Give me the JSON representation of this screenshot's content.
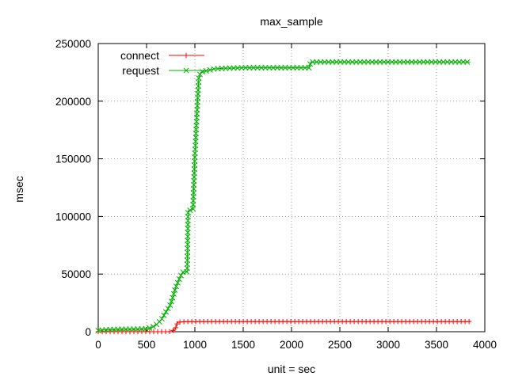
{
  "chart_data": {
    "type": "line",
    "title": "max_sample",
    "xlabel": "unit = sec",
    "ylabel": "msec",
    "xlim": [
      0,
      4000
    ],
    "ylim": [
      0,
      250000
    ],
    "xticks": [
      0,
      500,
      1000,
      1500,
      2000,
      2500,
      3000,
      3500,
      4000
    ],
    "xtick_labels": [
      "0",
      "500",
      "1000",
      "1500",
      "2000",
      "2500",
      "3000",
      "3500",
      "4000"
    ],
    "yticks": [
      0,
      50000,
      100000,
      150000,
      200000,
      250000
    ],
    "ytick_labels": [
      "0",
      "50000",
      "100000",
      "150000",
      "200000",
      "250000"
    ],
    "grid": true,
    "legend_position": "top-left",
    "series": [
      {
        "name": "connect",
        "color": "#ff0000",
        "marker": "plus",
        "points": [
          [
            0,
            0
          ],
          [
            100,
            0
          ],
          [
            200,
            0
          ],
          [
            300,
            0
          ],
          [
            400,
            0
          ],
          [
            500,
            0
          ],
          [
            600,
            0
          ],
          [
            700,
            0
          ],
          [
            760,
            100
          ],
          [
            800,
            3000
          ],
          [
            820,
            8000
          ],
          [
            850,
            8500
          ],
          [
            900,
            8700
          ],
          [
            1000,
            8800
          ],
          [
            1200,
            8800
          ],
          [
            1500,
            8800
          ],
          [
            2000,
            8800
          ],
          [
            2500,
            8800
          ],
          [
            3000,
            8800
          ],
          [
            3500,
            8800
          ],
          [
            3850,
            8800
          ]
        ]
      },
      {
        "name": "request",
        "color": "#00b000",
        "marker": "x",
        "points": [
          [
            0,
            1000
          ],
          [
            50,
            1500
          ],
          [
            100,
            1800
          ],
          [
            200,
            2000
          ],
          [
            300,
            2200
          ],
          [
            400,
            2300
          ],
          [
            500,
            2500
          ],
          [
            550,
            3500
          ],
          [
            600,
            6000
          ],
          [
            650,
            10000
          ],
          [
            700,
            17000
          ],
          [
            750,
            24000
          ],
          [
            800,
            38000
          ],
          [
            850,
            48000
          ],
          [
            880,
            52000
          ],
          [
            920,
            52000
          ],
          [
            930,
            105000
          ],
          [
            980,
            106000
          ],
          [
            1000,
            153000
          ],
          [
            1040,
            220000
          ],
          [
            1060,
            225000
          ],
          [
            1100,
            226000
          ],
          [
            1150,
            227000
          ],
          [
            1200,
            228000
          ],
          [
            1300,
            228500
          ],
          [
            1500,
            229000
          ],
          [
            1800,
            229000
          ],
          [
            2000,
            229000
          ],
          [
            2180,
            229000
          ],
          [
            2200,
            234000
          ],
          [
            2500,
            234000
          ],
          [
            3000,
            234000
          ],
          [
            3500,
            234000
          ],
          [
            3850,
            234000
          ]
        ]
      }
    ]
  }
}
